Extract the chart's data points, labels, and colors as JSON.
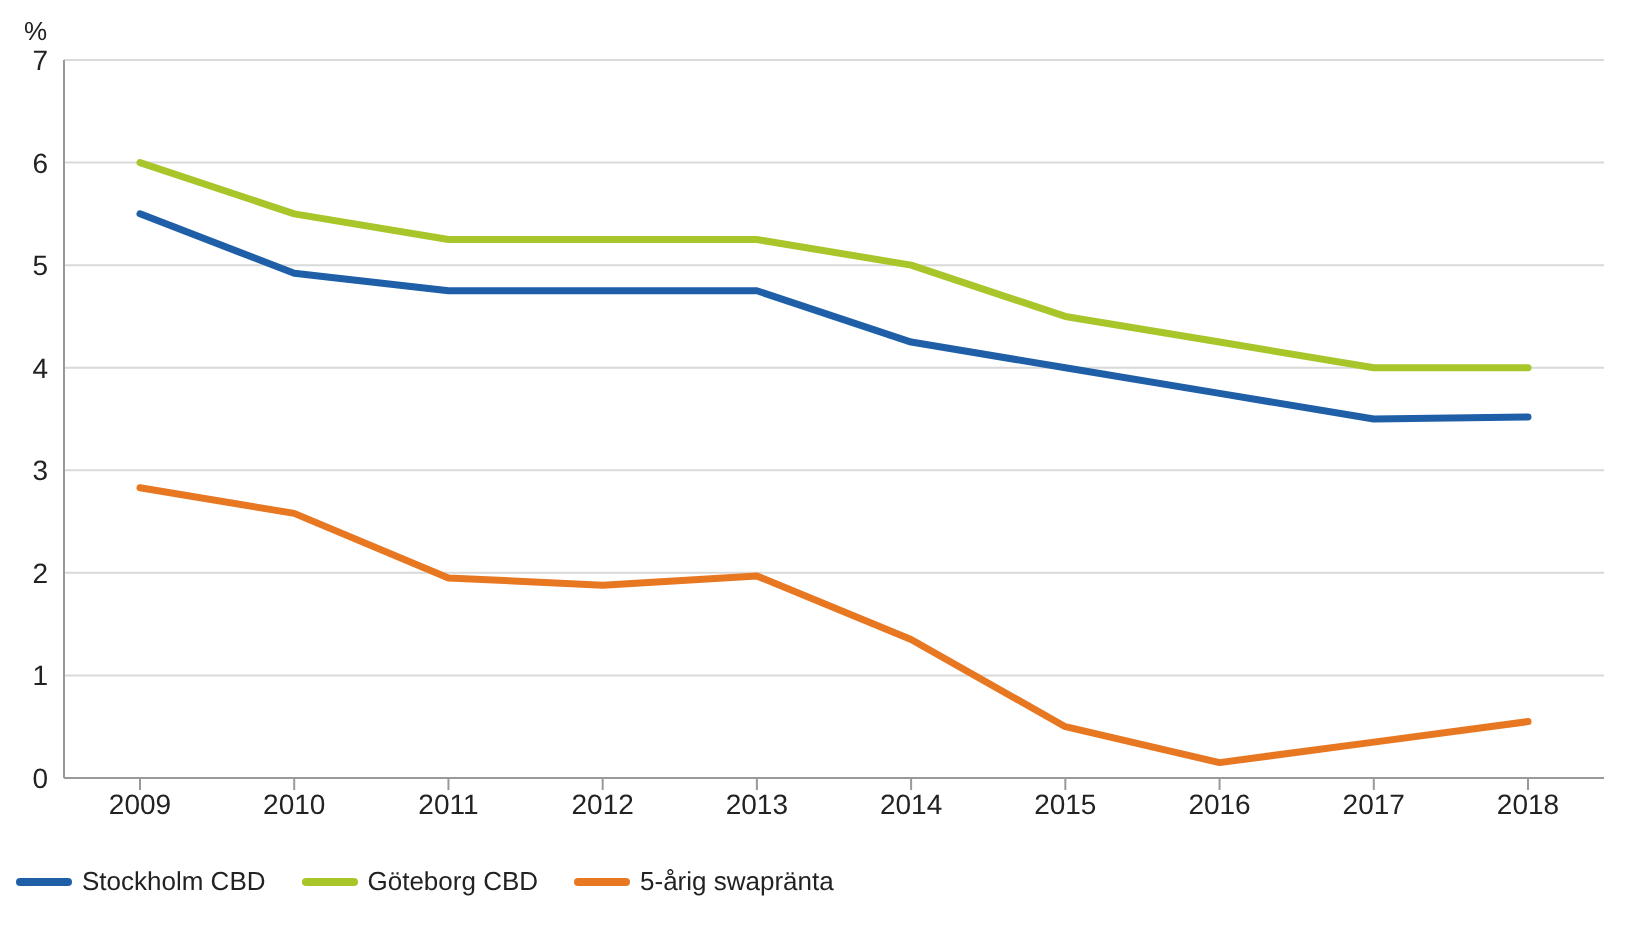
{
  "chart_data": {
    "type": "line",
    "ylabel": "%",
    "categories": [
      "2009",
      "2010",
      "2011",
      "2012",
      "2013",
      "2014",
      "2015",
      "2016",
      "2017",
      "2018"
    ],
    "series": [
      {
        "name": "Stockholm CBD",
        "color": "#1f5fa8",
        "values": [
          5.5,
          4.92,
          4.75,
          4.75,
          4.75,
          4.25,
          4.0,
          3.75,
          3.5,
          3.52
        ]
      },
      {
        "name": "Göteborg CBD",
        "color": "#a8c62a",
        "values": [
          6.0,
          5.5,
          5.25,
          5.25,
          5.25,
          5.0,
          4.5,
          4.25,
          4.0,
          4.0
        ]
      },
      {
        "name": "5-årig swapränta",
        "color": "#e87722",
        "values": [
          2.83,
          2.58,
          1.95,
          1.88,
          1.97,
          1.35,
          0.5,
          0.15,
          0.35,
          0.55
        ]
      }
    ],
    "ylim": [
      0,
      7
    ],
    "yticks": [
      0,
      1,
      2,
      3,
      4,
      5,
      6,
      7
    ],
    "grid": "y",
    "legend": "bottom left",
    "marker": "none",
    "line_style": "solid"
  }
}
